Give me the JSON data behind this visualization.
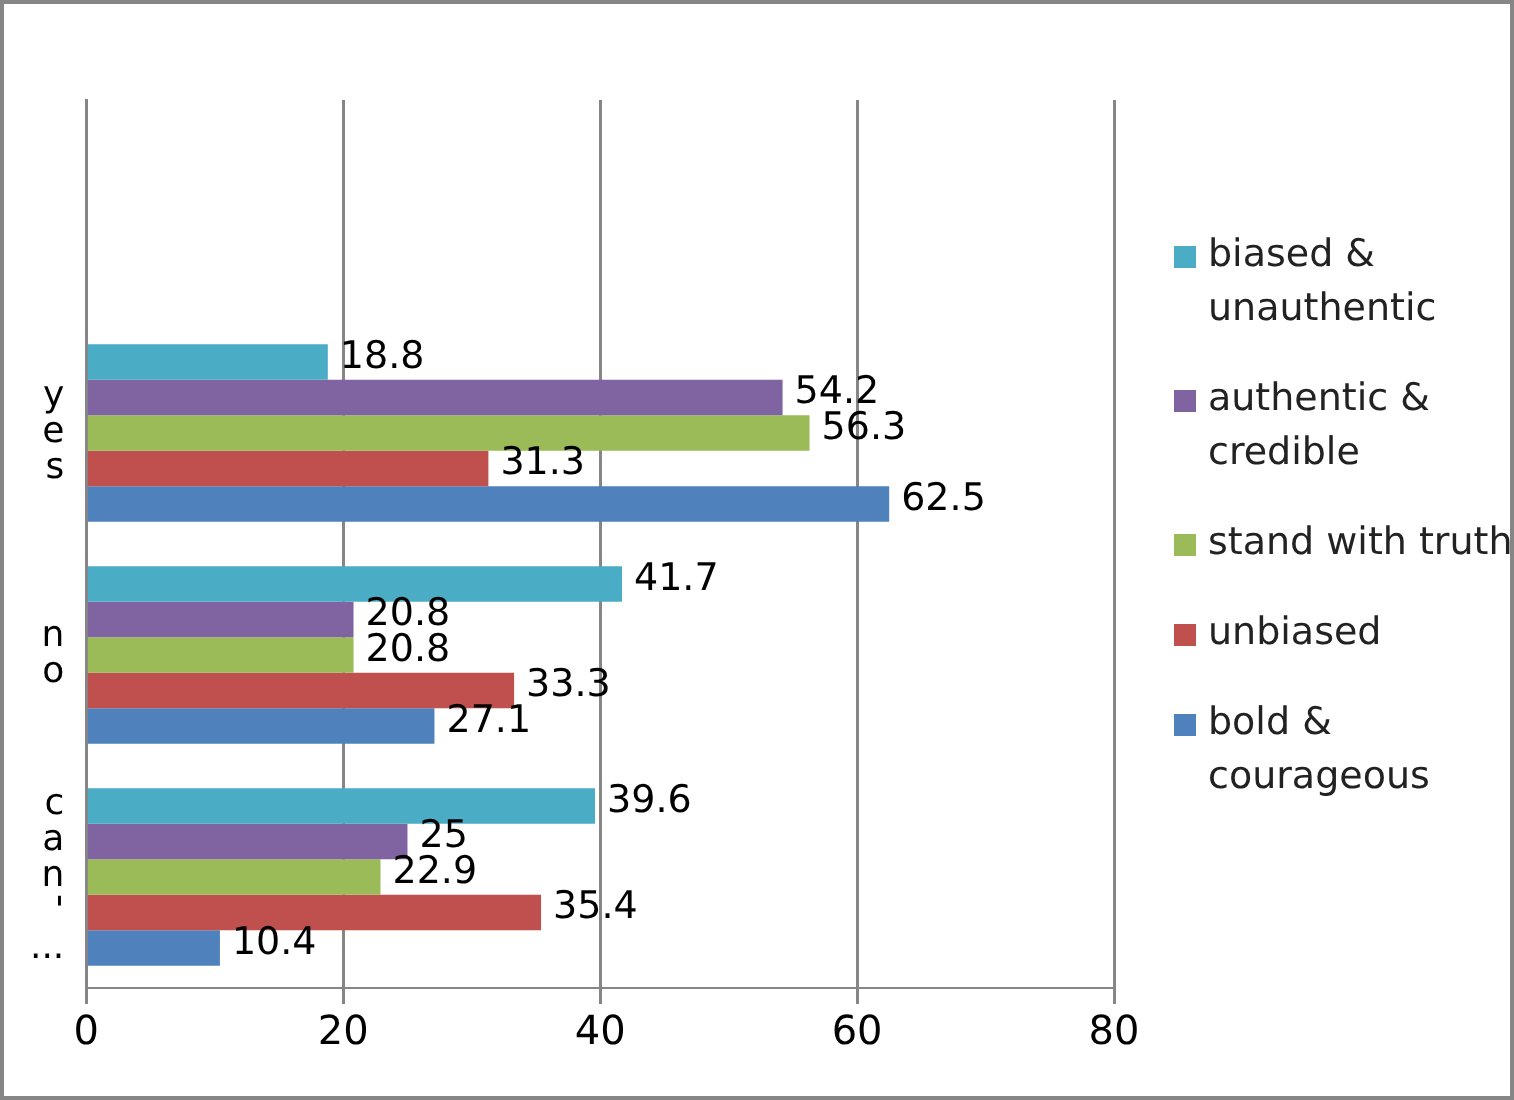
{
  "chart_data": {
    "type": "bar",
    "orientation": "horizontal",
    "categories": [
      null,
      "yes",
      "no",
      "can'..."
    ],
    "series": [
      {
        "name": "biased & unauthentic",
        "color": "#4bacc6",
        "values": [
          null,
          18.8,
          41.7,
          39.6
        ]
      },
      {
        "name": "authentic & credible",
        "color": "#8064a2",
        "values": [
          null,
          54.2,
          20.8,
          25
        ]
      },
      {
        "name": "stand with truth",
        "color": "#9bbb59",
        "values": [
          null,
          56.3,
          20.8,
          22.9
        ]
      },
      {
        "name": "unbiased",
        "color": "#c0504d",
        "values": [
          null,
          31.3,
          33.3,
          35.4
        ]
      },
      {
        "name": "bold & courageous",
        "color": "#4f81bd",
        "values": [
          null,
          62.5,
          27.1,
          10.4
        ]
      }
    ],
    "xlim": [
      0,
      80
    ],
    "xticks": [
      0,
      20,
      40,
      60,
      80
    ],
    "grid": "x",
    "legend": "right",
    "data_labels": true
  }
}
